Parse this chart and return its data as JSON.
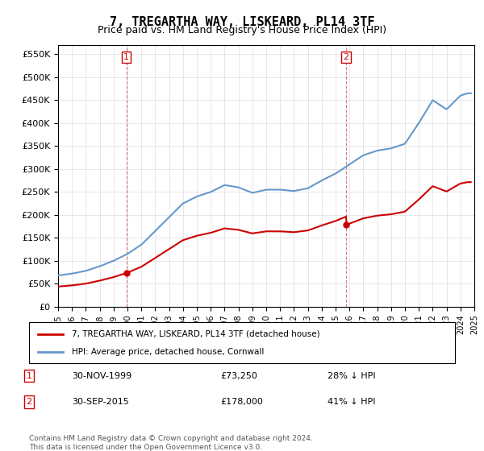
{
  "title": "7, TREGARTHA WAY, LISKEARD, PL14 3TF",
  "subtitle": "Price paid vs. HM Land Registry's House Price Index (HPI)",
  "legend_entry1": "7, TREGARTHA WAY, LISKEARD, PL14 3TF (detached house)",
  "legend_entry2": "HPI: Average price, detached house, Cornwall",
  "table_row1": [
    "1",
    "30-NOV-1999",
    "£73,250",
    "28% ↓ HPI"
  ],
  "table_row2": [
    "2",
    "30-SEP-2015",
    "£178,000",
    "41% ↓ HPI"
  ],
  "footnote": "Contains HM Land Registry data © Crown copyright and database right 2024.\nThis data is licensed under the Open Government Licence v3.0.",
  "hpi_color": "#6699cc",
  "price_color": "#cc0000",
  "marker1_year": 2000.0,
  "marker2_year": 2015.75,
  "sale1_price": 73250,
  "sale2_price": 178000,
  "ylim_max": 570000,
  "ylim_min": 0
}
